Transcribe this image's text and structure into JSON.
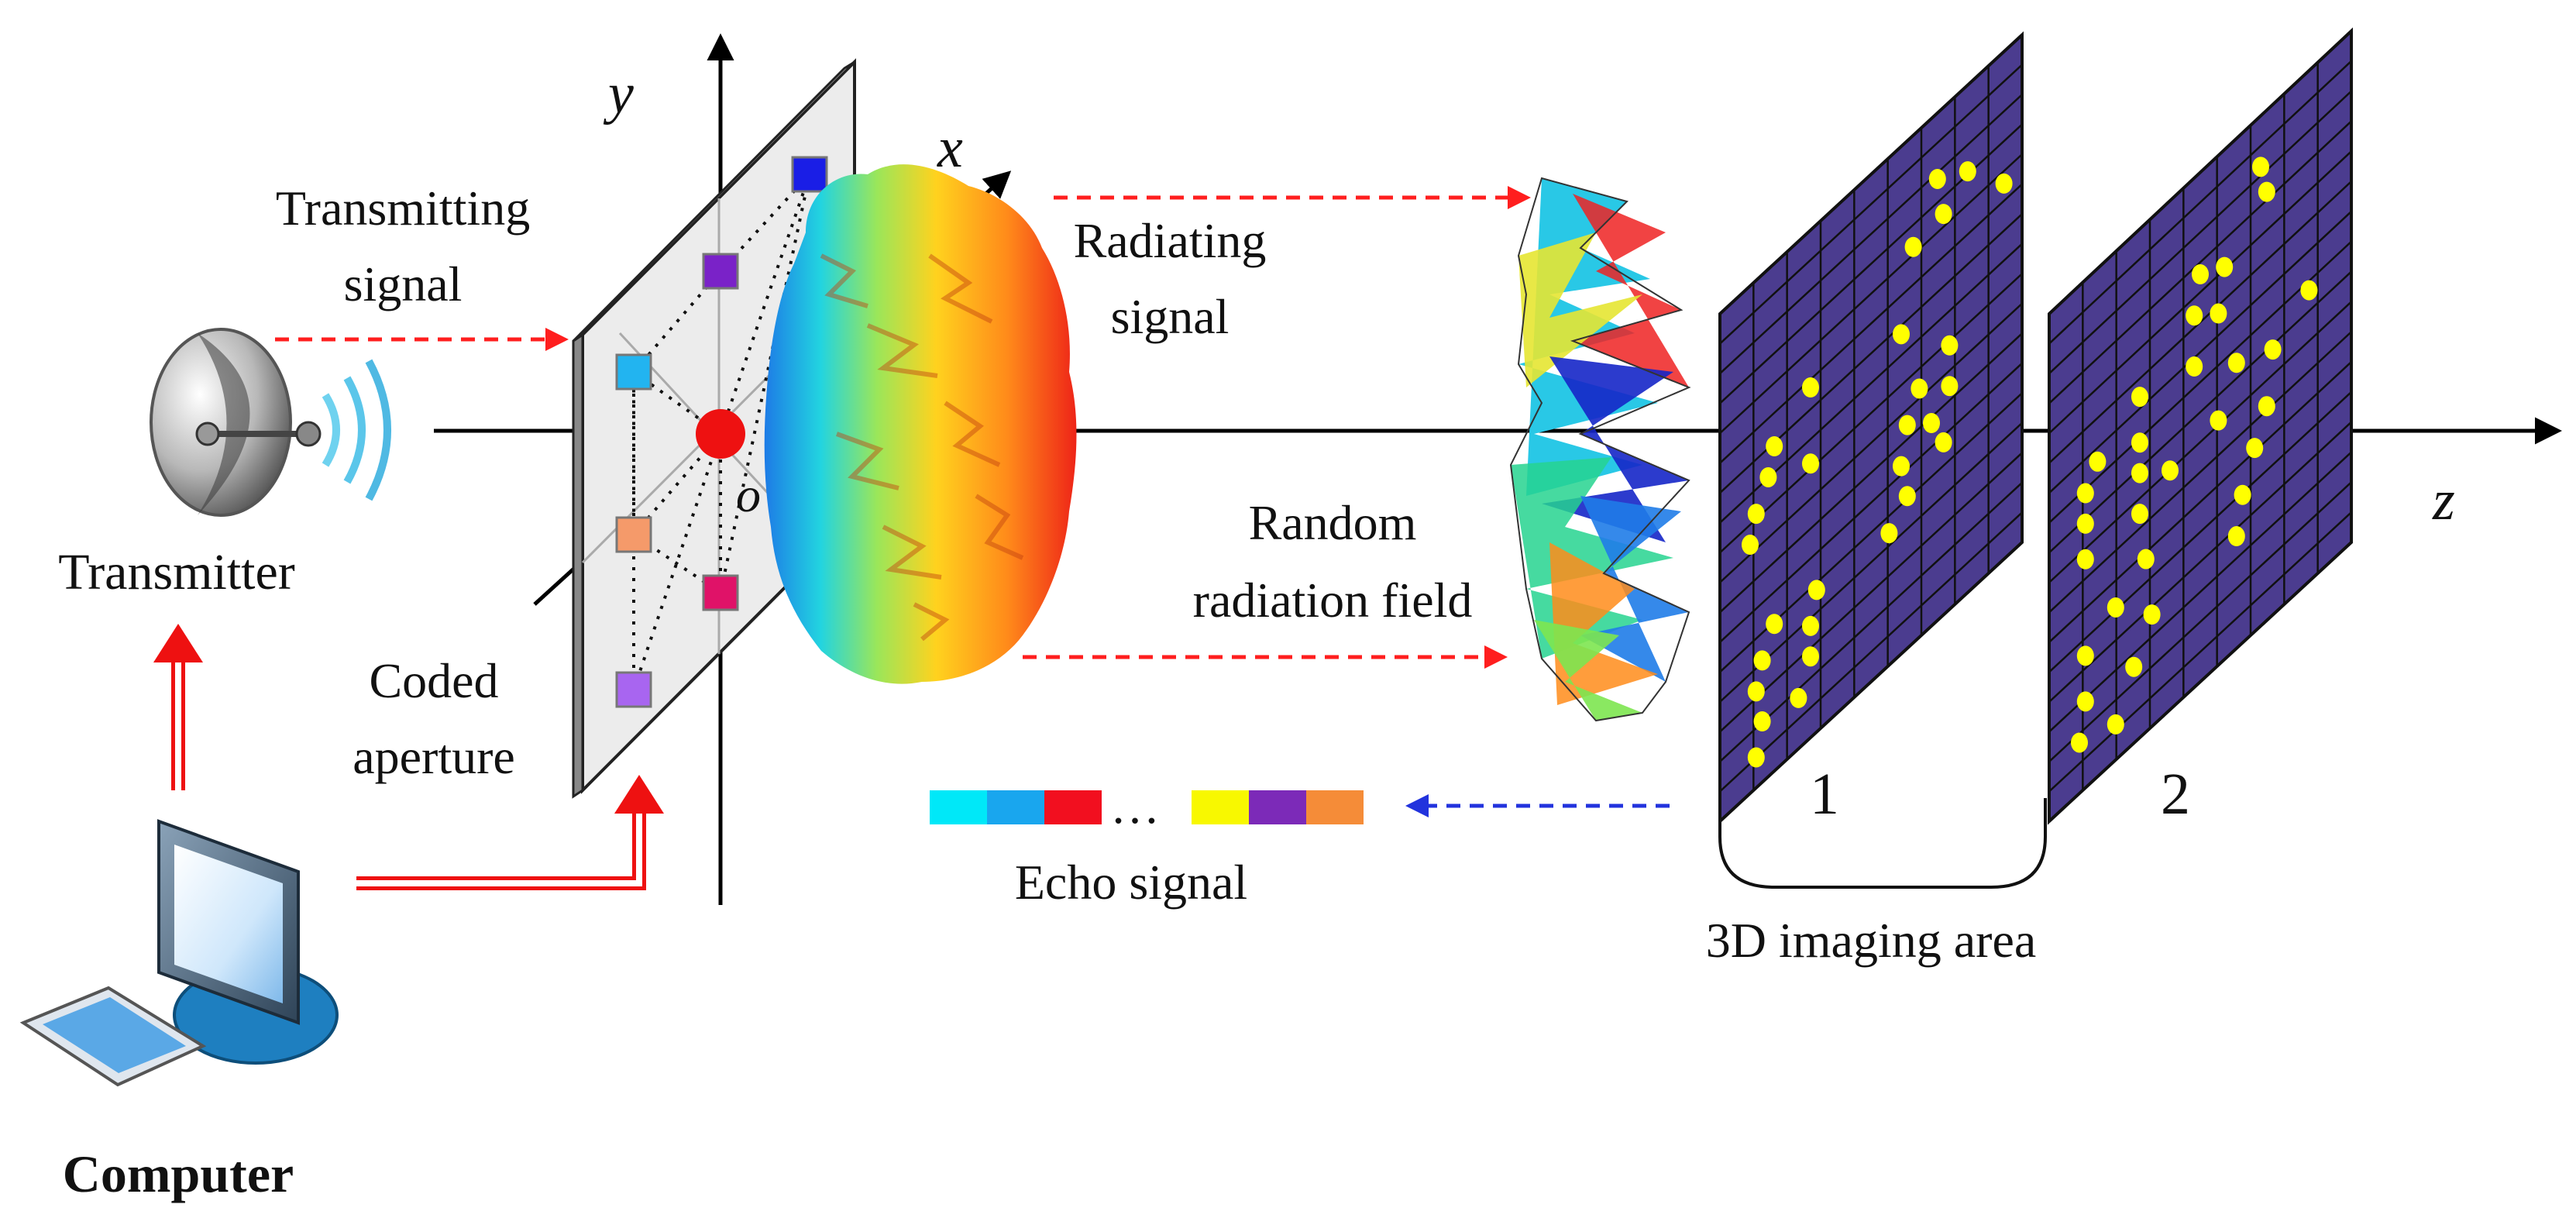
{
  "labels": {
    "transmitting_line1": "Transmitting",
    "transmitting_line2": "signal",
    "transmitter": "Transmitter",
    "computer": "Computer",
    "coded_line1": "Coded",
    "coded_line2": "aperture",
    "radiating_line1": "Radiating",
    "radiating_line2": "signal",
    "random_line1": "Random",
    "random_line2": "radiation field",
    "echo": "Echo signal",
    "echo_ellipsis": "…",
    "imaging_area": "3D imaging area",
    "plane1": "1",
    "plane2": "2",
    "axis_x": "x",
    "axis_y": "y",
    "axis_z": "z",
    "origin": "o"
  },
  "colors": {
    "signal_arrow": "#ff1e1e",
    "echo_arrow": "#2233dd",
    "control_line": "#ee1111",
    "computer_label": "#ee1111",
    "grid_fill": "#4b3c8f",
    "grid_line": "#111111",
    "target_dot": "#ffff00",
    "aperture_face": "#ececec",
    "origin_dot": "#ee1111"
  },
  "aperture_elements": [
    {
      "name": "element-top-right",
      "color": "#1a1ee6"
    },
    {
      "name": "element-upper-mid",
      "color": "#7a22c8"
    },
    {
      "name": "element-left-mid",
      "color": "#22b4f0"
    },
    {
      "name": "element-lower-left",
      "color": "#f59a6a"
    },
    {
      "name": "element-lower-right",
      "color": "#e01268"
    },
    {
      "name": "element-bottom-left",
      "color": "#a865f0"
    }
  ],
  "echo_swatches": [
    "#00e8f8",
    "#19a6ee",
    "#f20f1f",
    "#f8f800",
    "#7c2ab8",
    "#f58c38"
  ],
  "icons": {
    "transmitter": "dish-antenna-icon",
    "computer": "desktop-computer-icon"
  }
}
